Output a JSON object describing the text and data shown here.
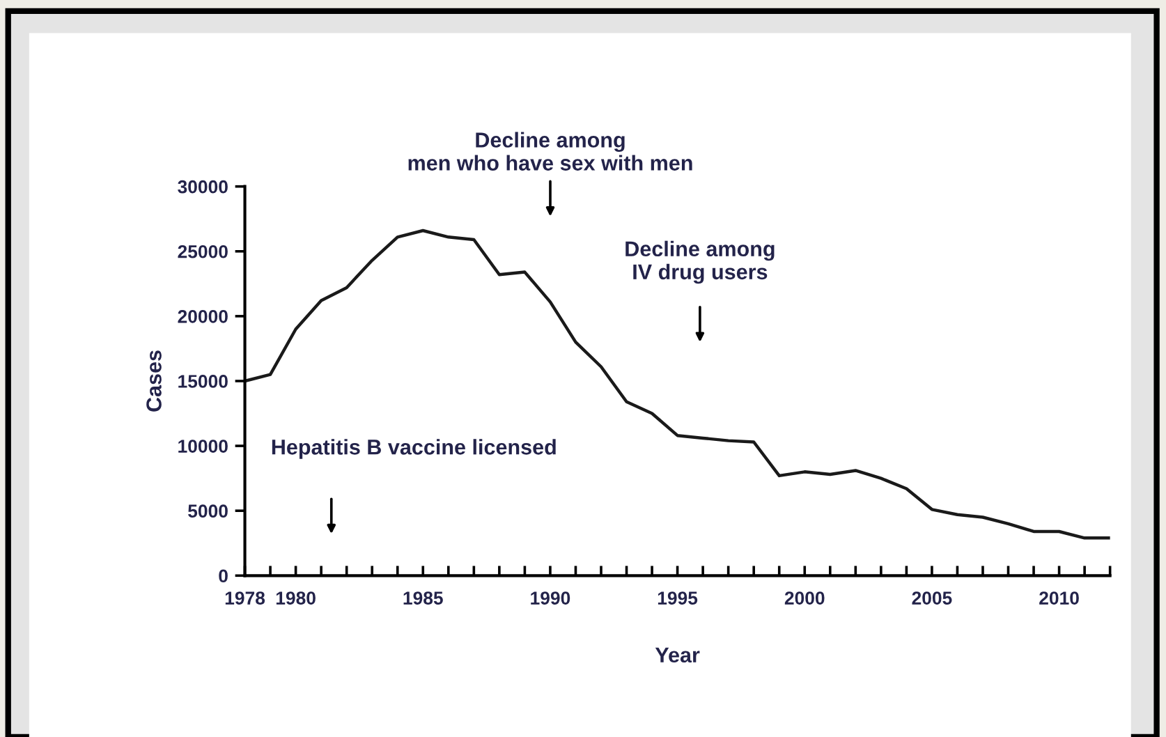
{
  "chart_data": {
    "type": "line",
    "xlabel": "Year",
    "ylabel": "Cases",
    "x": [
      1978,
      1979,
      1980,
      1981,
      1982,
      1983,
      1984,
      1985,
      1986,
      1987,
      1988,
      1989,
      1990,
      1991,
      1992,
      1993,
      1994,
      1995,
      1996,
      1997,
      1998,
      1999,
      2000,
      2001,
      2002,
      2003,
      2004,
      2005,
      2006,
      2007,
      2008,
      2009,
      2010,
      2011,
      2012
    ],
    "series": [
      {
        "color": "#1a1a1a",
        "values": [
          15000,
          15500,
          19000,
          21200,
          22200,
          24300,
          26100,
          26600,
          26100,
          25900,
          23200,
          23400,
          21100,
          18000,
          16100,
          13400,
          12500,
          10800,
          10600,
          10400,
          10300,
          7700,
          8000,
          7800,
          8100,
          7500,
          6700,
          5100,
          4700,
          4500,
          4000,
          3400,
          3400,
          2900,
          2900
        ]
      }
    ],
    "xlim": [
      1978,
      2012
    ],
    "ylim": [
      0,
      30000
    ],
    "xticks": [
      1978,
      {
        "value": 1979,
        "label": null
      },
      1980,
      {
        "value": 1981,
        "label": null
      },
      {
        "value": 1982,
        "label": null
      },
      {
        "value": 1983,
        "label": null
      },
      {
        "value": 1984,
        "label": null
      },
      1985,
      {
        "value": 1986,
        "label": null
      },
      {
        "value": 1987,
        "label": null
      },
      {
        "value": 1988,
        "label": null
      },
      {
        "value": 1989,
        "label": null
      },
      1990,
      {
        "value": 1991,
        "label": null
      },
      {
        "value": 1992,
        "label": null
      },
      {
        "value": 1993,
        "label": null
      },
      {
        "value": 1994,
        "label": null
      },
      1995,
      {
        "value": 1996,
        "label": null
      },
      {
        "value": 1997,
        "label": null
      },
      {
        "value": 1998,
        "label": null
      },
      {
        "value": 1999,
        "label": null
      },
      2000,
      {
        "value": 2001,
        "label": null
      },
      {
        "value": 2002,
        "label": null
      },
      {
        "value": 2003,
        "label": null
      },
      {
        "value": 2004,
        "label": null
      },
      2005,
      {
        "value": 2006,
        "label": null
      },
      {
        "value": 2007,
        "label": null
      },
      {
        "value": 2008,
        "label": null
      },
      {
        "value": 2009,
        "label": null
      },
      2010,
      {
        "value": 2011,
        "label": null
      },
      {
        "value": 2012,
        "label": null
      }
    ],
    "yticks": [
      0,
      5000,
      10000,
      15000,
      20000,
      25000,
      30000
    ],
    "grid": false,
    "legend": false,
    "marker": "none",
    "line_style": "solid",
    "annotations": [
      "Decline among\nmen who have sex with men",
      "Decline among\nIV drug users",
      "Hepatitis B vaccine licensed"
    ]
  }
}
